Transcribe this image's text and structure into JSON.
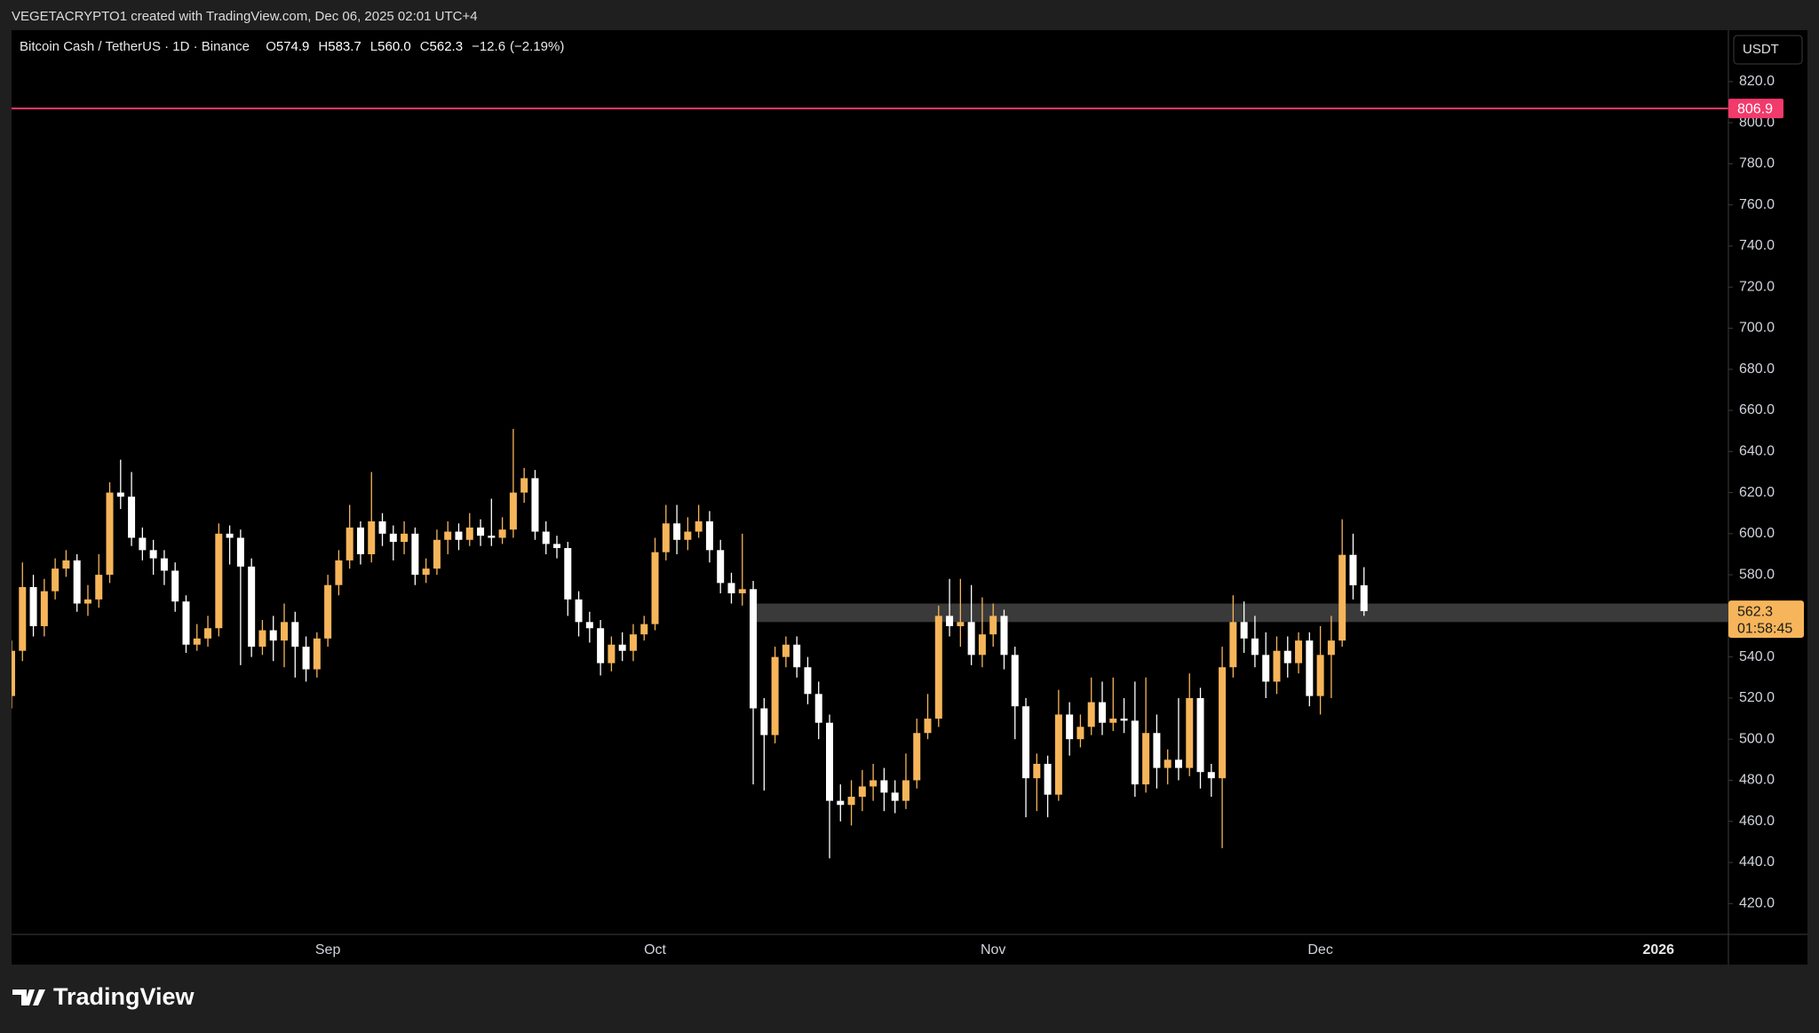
{
  "header": {
    "attribution": "VEGETACRYPTO1 created with TradingView.com, Dec 06, 2025 02:01 UTC+4"
  },
  "footer": {
    "logo_text": "TradingView"
  },
  "chart_data": {
    "type": "candlestick",
    "symbol": "Bitcoin Cash / TetherUS · 1D · Binance",
    "legend_items": [
      {
        "key": "O",
        "value": 574.9
      },
      {
        "key": "H",
        "value": 583.7
      },
      {
        "key": "L",
        "value": 560,
        "label": "560.0"
      },
      {
        "key": "C",
        "value": 562.3
      }
    ],
    "change": {
      "value": -12.6,
      "label": "−12.6"
    },
    "change_pct": {
      "value": -2.19,
      "label": "(−2.19%)"
    },
    "currency": "USDT",
    "categories": [
      null,
      null,
      null,
      null,
      null,
      null,
      null,
      null,
      null,
      null,
      null,
      null,
      null,
      null,
      null,
      null,
      null,
      null,
      null,
      null,
      null,
      null,
      null,
      null,
      null,
      null,
      null,
      null,
      null,
      "Sep",
      null,
      null,
      null,
      null,
      null,
      null,
      null,
      null,
      null,
      null,
      null,
      null,
      null,
      null,
      null,
      null,
      null,
      null,
      null,
      null,
      null,
      null,
      null,
      null,
      null,
      null,
      null,
      null,
      null,
      "Oct",
      null,
      null,
      null,
      null,
      null,
      null,
      null,
      null,
      null,
      null,
      null,
      null,
      null,
      null,
      null,
      null,
      null,
      null,
      null,
      null,
      null,
      null,
      null,
      null,
      null,
      null,
      null,
      null,
      null,
      null,
      "Nov",
      null,
      null,
      null,
      null,
      null,
      null,
      null,
      null,
      null,
      null,
      null,
      null,
      null,
      null,
      null,
      null,
      null,
      null,
      null,
      null,
      null,
      null,
      null,
      null,
      null,
      null,
      null,
      null,
      null,
      "Dec",
      null,
      null,
      null,
      null
    ],
    "future_label": "2026",
    "open": [
      521,
      543,
      574,
      555,
      572,
      583,
      587,
      566,
      568,
      580,
      620,
      618,
      598,
      592,
      588,
      582,
      567,
      546,
      549,
      554,
      600,
      598,
      584,
      545,
      553,
      548,
      557,
      545,
      534,
      549,
      575,
      587,
      603,
      590,
      606,
      600,
      596,
      600,
      580,
      583,
      597,
      601,
      597,
      603,
      599,
      598,
      602,
      620,
      627,
      601,
      595,
      593,
      568,
      557,
      554,
      537,
      546,
      543,
      551,
      556,
      591,
      605,
      597,
      601,
      606,
      592,
      576,
      571,
      573,
      515,
      502,
      540,
      546,
      535,
      522,
      508,
      470,
      468,
      472,
      477,
      480,
      474,
      470,
      480,
      503,
      510,
      560,
      555,
      557,
      541,
      551,
      560,
      541,
      516,
      481,
      488,
      473,
      512,
      500,
      506,
      518,
      508,
      510,
      509,
      478,
      503,
      486,
      490,
      486,
      520,
      484,
      481,
      535,
      557,
      549,
      541,
      528,
      543,
      537,
      548,
      521,
      541,
      548,
      589.7,
      574.9
    ],
    "high": [
      548,
      586,
      580,
      578,
      588,
      592,
      590,
      575,
      590,
      625,
      636,
      630,
      603,
      597,
      592,
      586,
      570,
      556,
      560,
      605,
      604,
      602,
      588,
      558,
      560,
      566,
      562,
      550,
      552,
      580,
      592,
      614,
      606,
      630,
      610,
      604,
      606,
      603,
      588,
      602,
      606,
      605,
      610,
      607,
      617,
      608,
      651,
      632,
      631,
      606,
      599,
      596,
      572,
      562,
      558,
      550,
      552,
      556,
      560,
      598,
      614,
      614,
      608,
      614,
      611,
      597,
      581,
      600,
      577,
      520,
      545,
      550,
      550,
      540,
      528,
      512,
      478,
      480,
      485,
      488,
      486,
      480,
      493,
      510,
      522,
      565,
      578,
      578,
      575,
      569,
      566,
      563,
      545,
      520,
      493,
      492,
      524,
      518,
      512,
      530,
      528,
      530,
      520,
      528,
      530,
      512,
      495,
      520,
      532,
      525,
      488,
      545,
      570,
      567,
      560,
      552,
      550,
      550,
      552,
      552,
      555,
      560,
      607,
      600,
      583.7
    ],
    "low": [
      515,
      538,
      550,
      550,
      568,
      579,
      562,
      560,
      564,
      576,
      612,
      594,
      587,
      580,
      575,
      562,
      542,
      543,
      545,
      550,
      585,
      536,
      540,
      541,
      538,
      535,
      530,
      528,
      530,
      545,
      570,
      583,
      585,
      586,
      594,
      587,
      590,
      575,
      576,
      580,
      590,
      592,
      594,
      594,
      594,
      595,
      598,
      615,
      597,
      590,
      588,
      560,
      550,
      547,
      531,
      533,
      538,
      538,
      548,
      553,
      587,
      590,
      592,
      598,
      586,
      571,
      566,
      565,
      478,
      475,
      498,
      535,
      530,
      517,
      500,
      442,
      460,
      458,
      465,
      470,
      465,
      464,
      466,
      476,
      500,
      506,
      550,
      545,
      536,
      535,
      545,
      534,
      500,
      462,
      465,
      462,
      470,
      492,
      496,
      502,
      502,
      504,
      503,
      472,
      474,
      476,
      478,
      480,
      482,
      476,
      472,
      447,
      530,
      542,
      535,
      520,
      522,
      530,
      532,
      516,
      512,
      520,
      545,
      568,
      560
    ],
    "close": [
      543,
      574,
      555,
      572,
      583,
      587,
      566,
      568,
      580,
      620,
      618,
      598,
      592,
      588,
      582,
      567,
      546,
      549,
      554,
      600,
      598,
      584,
      545,
      553,
      548,
      557,
      545,
      534,
      549,
      575,
      587,
      603,
      590,
      606,
      600,
      596,
      600,
      580,
      583,
      597,
      601,
      597,
      603,
      599,
      598,
      602,
      620,
      627,
      601,
      595,
      593,
      568,
      557,
      554,
      537,
      546,
      543,
      551,
      556,
      591,
      605,
      597,
      601,
      606,
      592,
      576,
      571,
      573,
      515,
      502,
      540,
      546,
      535,
      522,
      508,
      470,
      468,
      472,
      477,
      480,
      474,
      470,
      480,
      503,
      510,
      560,
      555,
      557,
      541,
      551,
      560,
      541,
      516,
      481,
      488,
      473,
      512,
      500,
      506,
      518,
      508,
      510,
      509,
      478,
      503,
      486,
      490,
      486,
      520,
      484,
      481,
      535,
      557,
      549,
      541,
      528,
      543,
      537,
      548,
      521,
      541,
      548,
      589.7,
      574.9,
      562.3
    ],
    "colors": {
      "up": "#f6b55a",
      "down": "#ffffff"
    },
    "ylim": [
      405,
      845
    ],
    "yticks": [
      {
        "value": 420,
        "label": "420.0"
      },
      {
        "value": 440,
        "label": "440.0"
      },
      {
        "value": 460,
        "label": "460.0"
      },
      {
        "value": 480,
        "label": "480.0"
      },
      {
        "value": 500,
        "label": "500.0"
      },
      {
        "value": 520,
        "label": "520.0"
      },
      {
        "value": 540,
        "label": "540.0"
      },
      {
        "value": 560,
        "label": "560.0"
      },
      {
        "value": 580,
        "label": "580.0"
      },
      {
        "value": 600,
        "label": "600.0"
      },
      {
        "value": 620,
        "label": "620.0"
      },
      {
        "value": 640,
        "label": "640.0"
      },
      {
        "value": 660,
        "label": "660.0"
      },
      {
        "value": 680,
        "label": "680.0"
      },
      {
        "value": 700,
        "label": "700.0"
      },
      {
        "value": 720,
        "label": "720.0"
      },
      {
        "value": 740,
        "label": "740.0"
      },
      {
        "value": 760,
        "label": "760.0"
      },
      {
        "value": 780,
        "label": "780.0"
      },
      {
        "value": 800,
        "label": "800.0"
      },
      {
        "value": 820,
        "label": "820.0"
      }
    ],
    "horizontal_line": {
      "value": 806.9,
      "color": "#f23a6b"
    },
    "zone": {
      "low": 557,
      "high": 566,
      "color": "#3a3a3a"
    },
    "countdown": "01:58:45"
  }
}
